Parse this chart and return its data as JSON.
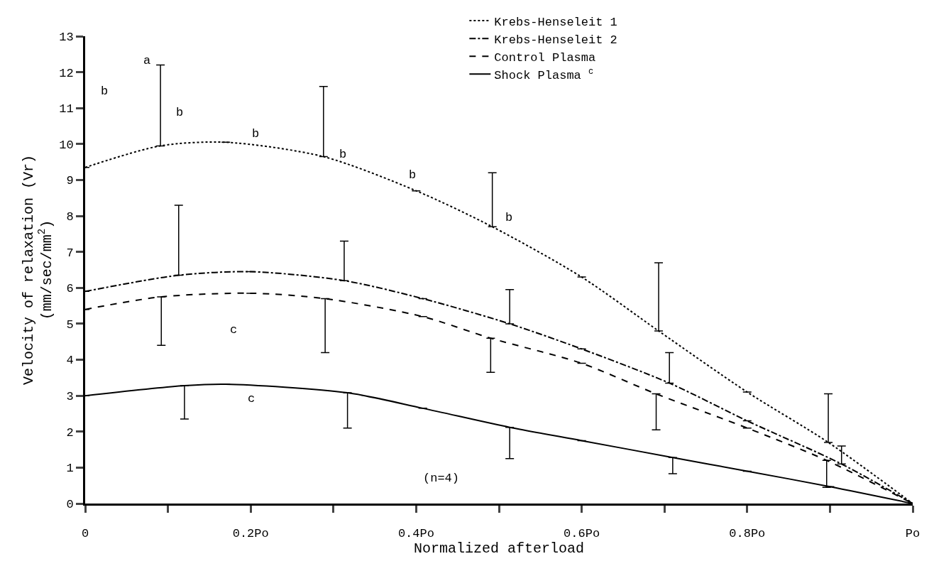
{
  "chart_data": {
    "type": "line",
    "xlabel": "Normalized afterload",
    "ylabel": "Velocity of relaxation (Vr)\n(mm/sec/mm$^{2}$)",
    "xlim": [
      0,
      1.0
    ],
    "xticks": [
      {
        "value": 0,
        "label": "0"
      },
      {
        "value": 0.1,
        "label": null
      },
      {
        "value": 0.2,
        "label": "0.2Po"
      },
      {
        "value": 0.3,
        "label": null
      },
      {
        "value": 0.4,
        "label": "0.4Po"
      },
      {
        "value": 0.5,
        "label": null
      },
      {
        "value": 0.6,
        "label": "0.6Po"
      },
      {
        "value": 0.7,
        "label": null
      },
      {
        "value": 0.8,
        "label": "0.8Po"
      },
      {
        "value": 0.9,
        "label": null
      },
      {
        "value": 1.0,
        "label": "Po"
      }
    ],
    "ylim": [
      0,
      13
    ],
    "yticks": [
      0,
      1,
      2,
      3,
      4,
      5,
      6,
      7,
      8,
      9,
      10,
      11,
      12,
      13
    ],
    "grid": false,
    "legend": "top right",
    "marker": "none",
    "series": [
      {
        "name": "Krebs-Henseleit 1",
        "color": "#000000",
        "line_style": "dotted",
        "x": [
          0,
          0.091,
          0.17,
          0.288,
          0.4,
          0.492,
          0.6,
          0.693,
          0.8,
          0.898,
          1.0
        ],
        "values": [
          9.35,
          9.95,
          10.05,
          9.65,
          8.7,
          7.7,
          6.3,
          4.8,
          3.1,
          1.7,
          0
        ],
        "errors": [
          null,
          [
            9.95,
            12.2
          ],
          null,
          [
            9.65,
            11.6
          ],
          null,
          [
            7.7,
            9.2
          ],
          null,
          [
            4.8,
            6.7
          ],
          null,
          [
            1.7,
            3.05
          ],
          null
        ]
      },
      {
        "name": "Krebs-Henseleit 2",
        "color": "#000000",
        "line_style": "dashdot",
        "x": [
          0,
          0.113,
          0.2,
          0.313,
          0.408,
          0.513,
          0.6,
          0.706,
          0.8,
          0.914,
          1.0
        ],
        "values": [
          5.9,
          6.35,
          6.45,
          6.2,
          5.7,
          5.0,
          4.3,
          3.35,
          2.3,
          1.1,
          0
        ],
        "errors": [
          null,
          [
            6.35,
            8.3
          ],
          null,
          [
            6.2,
            7.3
          ],
          null,
          [
            5.0,
            5.95
          ],
          null,
          [
            3.35,
            4.2
          ],
          null,
          [
            1.1,
            1.6
          ],
          null
        ]
      },
      {
        "name": "Control Plasma",
        "color": "#000000",
        "line_style": "dashed",
        "x": [
          0,
          0.092,
          0.2,
          0.29,
          0.408,
          0.49,
          0.6,
          0.69,
          0.8,
          0.896,
          1.0
        ],
        "values": [
          5.4,
          5.75,
          5.85,
          5.7,
          5.2,
          4.6,
          3.9,
          3.05,
          2.1,
          1.2,
          0
        ],
        "errors": [
          null,
          [
            4.4,
            5.75
          ],
          null,
          [
            4.2,
            5.7
          ],
          null,
          [
            3.65,
            4.6
          ],
          null,
          [
            2.05,
            3.05
          ],
          null,
          [
            0.45,
            1.2
          ],
          null
        ]
      },
      {
        "name": "Shock Plasma $^{c}$",
        "color": "#000000",
        "line_style": "solid",
        "x": [
          0,
          0.12,
          0.17,
          0.317,
          0.408,
          0.513,
          0.6,
          0.71,
          0.8,
          0.9,
          1.0
        ],
        "values": [
          3.0,
          3.28,
          3.32,
          3.08,
          2.65,
          2.12,
          1.75,
          1.28,
          0.9,
          0.47,
          0
        ],
        "errors": [
          null,
          [
            2.35,
            3.28
          ],
          null,
          [
            2.1,
            3.08
          ],
          null,
          [
            1.25,
            2.12
          ],
          null,
          [
            0.83,
            1.28
          ],
          null,
          null,
          null
        ]
      }
    ],
    "annotations": [
      "a",
      "b",
      "b",
      "b",
      "b",
      "b",
      "b",
      "c",
      "c",
      "(n=4)"
    ]
  }
}
